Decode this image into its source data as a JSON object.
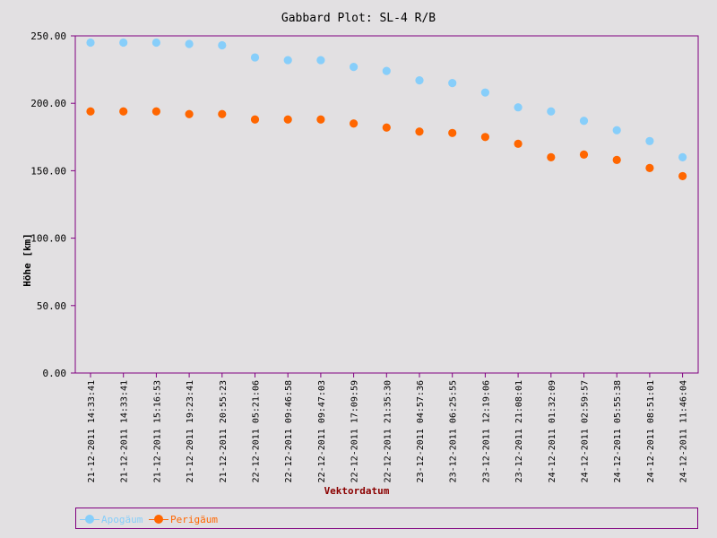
{
  "chart_data": {
    "type": "scatter",
    "title": "Gabbard Plot: SL-4 R/B",
    "xlabel": "Vektordatum",
    "ylabel": "Höhe [km]",
    "ylim": [
      0,
      250
    ],
    "yticks": [
      "0.00",
      "50.00",
      "100.00",
      "150.00",
      "200.00",
      "250.00"
    ],
    "categories": [
      "21-12-2011 14:33:41",
      "21-12-2011 14:33:41",
      "21-12-2011 15:16:53",
      "21-12-2011 19:23:41",
      "21-12-2011 20:55:23",
      "22-12-2011 05:21:06",
      "22-12-2011 09:46:58",
      "22-12-2011 09:47:03",
      "22-12-2011 17:09:59",
      "22-12-2011 21:35:30",
      "23-12-2011 04:57:36",
      "23-12-2011 06:25:55",
      "23-12-2011 12:19:06",
      "23-12-2011 21:08:01",
      "24-12-2011 01:32:09",
      "24-12-2011 02:59:57",
      "24-12-2011 05:55:38",
      "24-12-2011 08:51:01",
      "24-12-2011 11:46:04"
    ],
    "series": [
      {
        "name": "Apogäum",
        "color": "#87cefa",
        "values": [
          245,
          245,
          245,
          244,
          243,
          234,
          232,
          232,
          227,
          224,
          217,
          215,
          208,
          197,
          194,
          187,
          180,
          172,
          160
        ]
      },
      {
        "name": "Perigäum",
        "color": "#ff6600",
        "values": [
          194,
          194,
          194,
          192,
          192,
          188,
          188,
          188,
          185,
          182,
          179,
          178,
          175,
          170,
          160,
          162,
          158,
          152,
          146
        ]
      }
    ],
    "legend": "bottom"
  },
  "colors": {
    "frame": "#800080",
    "title": "#000000",
    "xlabel": "#8b0000"
  }
}
